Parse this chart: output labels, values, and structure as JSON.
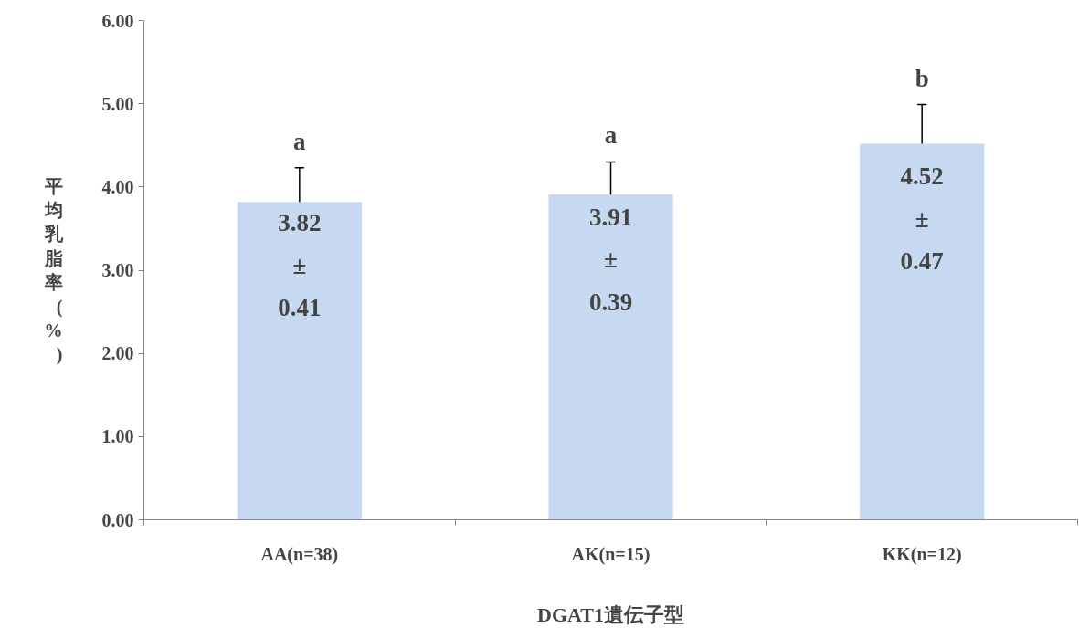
{
  "chart_data": {
    "type": "bar",
    "xlabel": "DGAT1遺伝子型",
    "ylabel": "平均乳脂率(%)",
    "categories": [
      "AA(n=38)",
      "AK(n=15)",
      "KK(n=12)"
    ],
    "values": [
      3.82,
      3.91,
      4.52
    ],
    "color": "#c6d9f0",
    "errors": [
      [
        3.82,
        4.23
      ],
      [
        3.91,
        4.3
      ],
      [
        4.52,
        4.99
      ]
    ],
    "value_labels": [
      "3.82\n±\n0.41",
      "3.91\n±\n0.39",
      "4.52\n±\n0.47"
    ],
    "annotations": [
      {
        "text": "a",
        "x": "AA(n=38)",
        "y": 4.23
      },
      {
        "text": "a",
        "x": "AK(n=15)",
        "y": 4.3
      },
      {
        "text": "b",
        "x": "KK(n=12)",
        "y": 4.99
      }
    ],
    "ylim": [
      0,
      6
    ],
    "yticks": [
      {
        "value": 0,
        "label": "0.00"
      },
      {
        "value": 1,
        "label": "1.00"
      },
      {
        "value": 2,
        "label": "2.00"
      },
      {
        "value": 3,
        "label": "3.00"
      },
      {
        "value": 4,
        "label": "4.00"
      },
      {
        "value": 5,
        "label": "5.00"
      },
      {
        "value": 6,
        "label": "6.00"
      }
    ],
    "grid": false
  }
}
